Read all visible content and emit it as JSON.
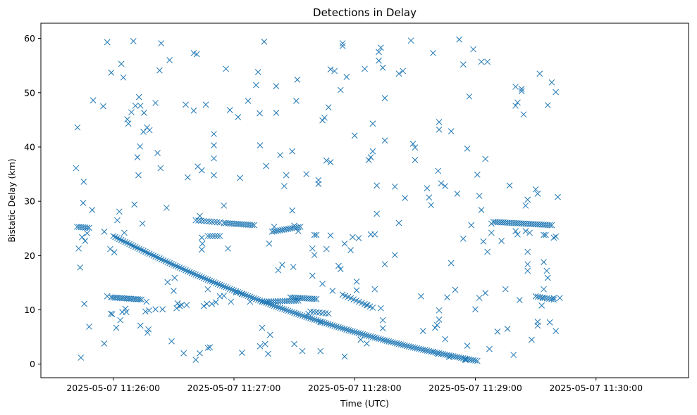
{
  "chart_data": {
    "type": "scatter",
    "title": "Detections in Delay",
    "xlabel": "Time (UTC)",
    "ylabel": "Bistatic Delay (km)",
    "x_unit": "seconds since 2025-05-07 11:26:00 UTC",
    "xlim": [
      -36,
      286
    ],
    "ylim": [
      -2.5,
      62.8
    ],
    "x_ticks": [
      {
        "value": 0,
        "label": "2025-05-07 11:26:00"
      },
      {
        "value": 60,
        "label": "2025-05-07 11:27:00"
      },
      {
        "value": 120,
        "label": "2025-05-07 11:28:00"
      },
      {
        "value": 180,
        "label": "2025-05-07 11:29:00"
      },
      {
        "value": 240,
        "label": "2025-05-07 11:30:00"
      }
    ],
    "y_ticks": [
      0,
      10,
      20,
      30,
      40,
      50,
      60
    ],
    "marker": "x",
    "color": "#1f77b4",
    "grid": false,
    "tracks": [
      {
        "t_start": 0,
        "t_end": 181,
        "delay_start": 23.6,
        "delay_end": 0.6,
        "step": 1.0,
        "curve": -0.06
      },
      {
        "t_start": 114,
        "t_end": 129,
        "delay_start": 12.8,
        "delay_end": 10.4,
        "step": 1.4,
        "curve": 0
      },
      {
        "t_start": -18,
        "t_end": -12,
        "delay_start": 25.3,
        "delay_end": 25.1,
        "step": 1.0,
        "curve": 0
      },
      {
        "t_start": -1,
        "t_end": 14,
        "delay_start": 12.3,
        "delay_end": 11.9,
        "step": 0.9,
        "curve": 0
      },
      {
        "t_start": 41,
        "t_end": 53,
        "delay_start": 26.5,
        "delay_end": 26.1,
        "step": 1.3,
        "curve": 0
      },
      {
        "t_start": 47,
        "t_end": 53,
        "delay_start": 23.6,
        "delay_end": 23.6,
        "step": 1.2,
        "curve": 0
      },
      {
        "t_start": 55,
        "t_end": 70,
        "delay_start": 26.0,
        "delay_end": 25.6,
        "step": 1.0,
        "curve": 0
      },
      {
        "t_start": 79,
        "t_end": 93,
        "delay_start": 24.4,
        "delay_end": 25.3,
        "step": 1.0,
        "curve": 0
      },
      {
        "t_start": 74,
        "t_end": 92,
        "delay_start": 11.5,
        "delay_end": 11.7,
        "step": 1.1,
        "curve": 0
      },
      {
        "t_start": 88,
        "t_end": 101,
        "delay_start": 12.3,
        "delay_end": 12.0,
        "step": 1.0,
        "curve": 0
      },
      {
        "t_start": 98,
        "t_end": 107,
        "delay_start": 9.7,
        "delay_end": 9.3,
        "step": 1.4,
        "curve": 0
      },
      {
        "t_start": 189,
        "t_end": 218,
        "delay_start": 26.2,
        "delay_end": 25.6,
        "step": 1.0,
        "curve": 0
      },
      {
        "t_start": 210,
        "t_end": 219,
        "delay_start": 12.5,
        "delay_end": 11.9,
        "step": 1.1,
        "curve": 0
      }
    ],
    "points": [
      [
        -18.5,
        36.1
      ],
      [
        -17.8,
        43.6
      ],
      [
        -17.2,
        21.3
      ],
      [
        -16.5,
        17.8
      ],
      [
        -16.1,
        1.2
      ],
      [
        -15.5,
        23.4
      ],
      [
        -15,
        29.7
      ],
      [
        -14.7,
        33.6
      ],
      [
        -14.4,
        11.1
      ],
      [
        -14,
        22.7
      ],
      [
        -13,
        24.1
      ],
      [
        -12,
        6.9
      ],
      [
        -10.5,
        28.4
      ],
      [
        -10,
        48.6
      ],
      [
        -4.5,
        24.4
      ],
      [
        -5,
        47.5
      ],
      [
        -4.5,
        3.8
      ],
      [
        -3,
        59.3
      ],
      [
        -3,
        12.5
      ],
      [
        -1,
        53.7
      ],
      [
        -1.5,
        21.2
      ],
      [
        -1.2,
        9.3
      ],
      [
        -0.5,
        9.2
      ],
      [
        0.5,
        20.6
      ],
      [
        1.5,
        6.7
      ],
      [
        2,
        26.5
      ],
      [
        3,
        28.1
      ],
      [
        3.5,
        8.1
      ],
      [
        4,
        55.3
      ],
      [
        4.5,
        9.6
      ],
      [
        5,
        52.8
      ],
      [
        5.5,
        24.2
      ],
      [
        6,
        10.2
      ],
      [
        6.5,
        9.6
      ],
      [
        7,
        45.1
      ],
      [
        7.5,
        44.3
      ],
      [
        9,
        46.4
      ],
      [
        10,
        59.5
      ],
      [
        10.5,
        29.4
      ],
      [
        11,
        47.6
      ],
      [
        12,
        38.1
      ],
      [
        12.5,
        34.8
      ],
      [
        12.8,
        49.2
      ],
      [
        13.5,
        47.6
      ],
      [
        13.3,
        40.1
      ],
      [
        13.5,
        7.1
      ],
      [
        14.5,
        25.9
      ],
      [
        15,
        42.8
      ],
      [
        15.3,
        46.3
      ],
      [
        16,
        9.7
      ],
      [
        16.8,
        43.6
      ],
      [
        16.5,
        11.5
      ],
      [
        17,
        5.8
      ],
      [
        17.5,
        6.4
      ],
      [
        17.8,
        9.9
      ],
      [
        18,
        43.1
      ],
      [
        21,
        48.1
      ],
      [
        21,
        10.1
      ],
      [
        22,
        38.9
      ],
      [
        23,
        54.1
      ],
      [
        23.5,
        36.1
      ],
      [
        23.8,
        59.1
      ],
      [
        24.5,
        10.1
      ],
      [
        26.5,
        28.8
      ],
      [
        27,
        15.1
      ],
      [
        28,
        56.0
      ],
      [
        29,
        4.2
      ],
      [
        30,
        13.5
      ],
      [
        30.5,
        15.9
      ],
      [
        31.5,
        10.3
      ],
      [
        32,
        11.2
      ],
      [
        33,
        10.7
      ],
      [
        34,
        10.9
      ],
      [
        35,
        2.0
      ],
      [
        36,
        47.8
      ],
      [
        36.5,
        10.9
      ],
      [
        37,
        34.4
      ],
      [
        40,
        57.3
      ],
      [
        40,
        46.7
      ],
      [
        41,
        0.8
      ],
      [
        41.5,
        57.1
      ],
      [
        42,
        36.4
      ],
      [
        43,
        2.0
      ],
      [
        43,
        27.3
      ],
      [
        44,
        35.7
      ],
      [
        44,
        23.3
      ],
      [
        44,
        21.1
      ],
      [
        44.3,
        22.2
      ],
      [
        45,
        10.7
      ],
      [
        46,
        47.8
      ],
      [
        46.5,
        11.1
      ],
      [
        47,
        3.0
      ],
      [
        47,
        13.8
      ],
      [
        48,
        3.1
      ],
      [
        49,
        11.1
      ],
      [
        50,
        34.8
      ],
      [
        50,
        37.9
      ],
      [
        50,
        40.3
      ],
      [
        50,
        42.4
      ],
      [
        51,
        11.4
      ],
      [
        53,
        12.5
      ],
      [
        55,
        12.6
      ],
      [
        55,
        29.2
      ],
      [
        56,
        54.4
      ],
      [
        57,
        21.3
      ],
      [
        58,
        46.8
      ],
      [
        58.5,
        11.5
      ],
      [
        61,
        13.2
      ],
      [
        62,
        45.5
      ],
      [
        63,
        34.3
      ],
      [
        64,
        2.1
      ],
      [
        64,
        12.9
      ],
      [
        67,
        48.5
      ],
      [
        68,
        11.5
      ],
      [
        71,
        51.4
      ],
      [
        72,
        53.8
      ],
      [
        72.8,
        46.2
      ],
      [
        73,
        40.3
      ],
      [
        73,
        3.3
      ],
      [
        74,
        6.7
      ],
      [
        75,
        59.4
      ],
      [
        75.5,
        3.7
      ],
      [
        77,
        1.9
      ],
      [
        76,
        36.5
      ],
      [
        77.5,
        22.2
      ],
      [
        78,
        5.4
      ],
      [
        80,
        25.3
      ],
      [
        81,
        46.3
      ],
      [
        81,
        51.2
      ],
      [
        82,
        17.3
      ],
      [
        83,
        38.5
      ],
      [
        84,
        18.3
      ],
      [
        85,
        32.8
      ],
      [
        86,
        34.8
      ],
      [
        89,
        39.2
      ],
      [
        89,
        28.3
      ],
      [
        89.5,
        17.9
      ],
      [
        90,
        25.5
      ],
      [
        90,
        3.7
      ],
      [
        91,
        48.5
      ],
      [
        91.5,
        52.4
      ],
      [
        92,
        24.5
      ],
      [
        94,
        2.4
      ],
      [
        96,
        35.0
      ],
      [
        97,
        9.3
      ],
      [
        99,
        16.3
      ],
      [
        99,
        21.3
      ],
      [
        100,
        23.8
      ],
      [
        100,
        20.1
      ],
      [
        101,
        23.8
      ],
      [
        102,
        33.2
      ],
      [
        102,
        33.9
      ],
      [
        103,
        2.4
      ],
      [
        103,
        7.7
      ],
      [
        104,
        44.9
      ],
      [
        104,
        14.8
      ],
      [
        105,
        45.4
      ],
      [
        106,
        37.5
      ],
      [
        106,
        21.2
      ],
      [
        107,
        47.3
      ],
      [
        108,
        37.2
      ],
      [
        108,
        23.7
      ],
      [
        108,
        54.3
      ],
      [
        109,
        13.5
      ],
      [
        110,
        54.0
      ],
      [
        112,
        18.1
      ],
      [
        113,
        50.5
      ],
      [
        113,
        17.5
      ],
      [
        114,
        58.6
      ],
      [
        114,
        59.1
      ],
      [
        115,
        22.2
      ],
      [
        115,
        1.4
      ],
      [
        116,
        52.9
      ],
      [
        118,
        21.0
      ],
      [
        119,
        23.4
      ],
      [
        120,
        42.1
      ],
      [
        121,
        13.6
      ],
      [
        121,
        15.2
      ],
      [
        122,
        23.2
      ],
      [
        123,
        4.5
      ],
      [
        125,
        54.4
      ],
      [
        126,
        10.9
      ],
      [
        126,
        3.8
      ],
      [
        127,
        37.6
      ],
      [
        128,
        38.1
      ],
      [
        128,
        23.9
      ],
      [
        129,
        44.3
      ],
      [
        129,
        39.2
      ],
      [
        130,
        13.8
      ],
      [
        130,
        23.9
      ],
      [
        131,
        27.7
      ],
      [
        131,
        32.9
      ],
      [
        132,
        55.9
      ],
      [
        132,
        57.5
      ],
      [
        133,
        10.3
      ],
      [
        133,
        58.3
      ],
      [
        134,
        54.6
      ],
      [
        134,
        6.6
      ],
      [
        134,
        8.1
      ],
      [
        135,
        49.0
      ],
      [
        135,
        18.4
      ],
      [
        135,
        41.2
      ],
      [
        140,
        32.7
      ],
      [
        140,
        20.1
      ],
      [
        142,
        53.5
      ],
      [
        142,
        26.0
      ],
      [
        144,
        54.0
      ],
      [
        145,
        30.6
      ],
      [
        148,
        59.6
      ],
      [
        149,
        40.6
      ],
      [
        150,
        39.9
      ],
      [
        150,
        37.6
      ],
      [
        153,
        12.5
      ],
      [
        154,
        6.1
      ],
      [
        156,
        32.4
      ],
      [
        157,
        30.7
      ],
      [
        158,
        29.3
      ],
      [
        159,
        57.3
      ],
      [
        159,
        2.3
      ],
      [
        160,
        6.7
      ],
      [
        161,
        7.2
      ],
      [
        161.5,
        1.9
      ],
      [
        162,
        8.2
      ],
      [
        162,
        9.9
      ],
      [
        161.5,
        35.6
      ],
      [
        162,
        44.6
      ],
      [
        162,
        43.2
      ],
      [
        163,
        33.3
      ],
      [
        165,
        4.6
      ],
      [
        165,
        32.8
      ],
      [
        166,
        12.3
      ],
      [
        167,
        1.3
      ],
      [
        168,
        42.9
      ],
      [
        168,
        18.6
      ],
      [
        170,
        13.7
      ],
      [
        171,
        31.4
      ],
      [
        172,
        59.8
      ],
      [
        174,
        55.2
      ],
      [
        174,
        23.1
      ],
      [
        175,
        0.8
      ],
      [
        175.5,
        0.8
      ],
      [
        176,
        3.4
      ],
      [
        176,
        39.7
      ],
      [
        177,
        49.3
      ],
      [
        178,
        25.6
      ],
      [
        179,
        58.0
      ],
      [
        180,
        10.1
      ],
      [
        181,
        34.9
      ],
      [
        182,
        12.2
      ],
      [
        182,
        31.0
      ],
      [
        183,
        28.4
      ],
      [
        183,
        55.7
      ],
      [
        184,
        22.6
      ],
      [
        185,
        13.1
      ],
      [
        185,
        37.8
      ],
      [
        186,
        55.7
      ],
      [
        186,
        20.7
      ],
      [
        187,
        2.8
      ],
      [
        188,
        24.2
      ],
      [
        188,
        25.9
      ],
      [
        191,
        6.0
      ],
      [
        193,
        22.7
      ],
      [
        195,
        13.8
      ],
      [
        196,
        6.5
      ],
      [
        197,
        32.9
      ],
      [
        199,
        1.7
      ],
      [
        200,
        47.6
      ],
      [
        200,
        51.1
      ],
      [
        200,
        24.5
      ],
      [
        201,
        48.2
      ],
      [
        201,
        23.9
      ],
      [
        202,
        11.8
      ],
      [
        203,
        50.3
      ],
      [
        203,
        50.7
      ],
      [
        204,
        46.0
      ],
      [
        205,
        29.2
      ],
      [
        205,
        24.5
      ],
      [
        206,
        20.7
      ],
      [
        206,
        18.4
      ],
      [
        206,
        17.2
      ],
      [
        206,
        30.3
      ],
      [
        207,
        24.2
      ],
      [
        208,
        4.5
      ],
      [
        210,
        32.2
      ],
      [
        211,
        31.4
      ],
      [
        211,
        7.8
      ],
      [
        211,
        7.1
      ],
      [
        212,
        53.5
      ],
      [
        213,
        10.8
      ],
      [
        213.5,
        12.2
      ],
      [
        214,
        13.8
      ],
      [
        214,
        18.8
      ],
      [
        214,
        23.8
      ],
      [
        215,
        23.8
      ],
      [
        215.5,
        17.2
      ],
      [
        216,
        15.9
      ],
      [
        216,
        47.7
      ],
      [
        217,
        7.7
      ],
      [
        218,
        51.9
      ],
      [
        219,
        23.3
      ],
      [
        219,
        12.2
      ],
      [
        220,
        50.1
      ],
      [
        220,
        6.1
      ],
      [
        220,
        23.5
      ],
      [
        221,
        30.8
      ],
      [
        222,
        12.2
      ]
    ]
  }
}
